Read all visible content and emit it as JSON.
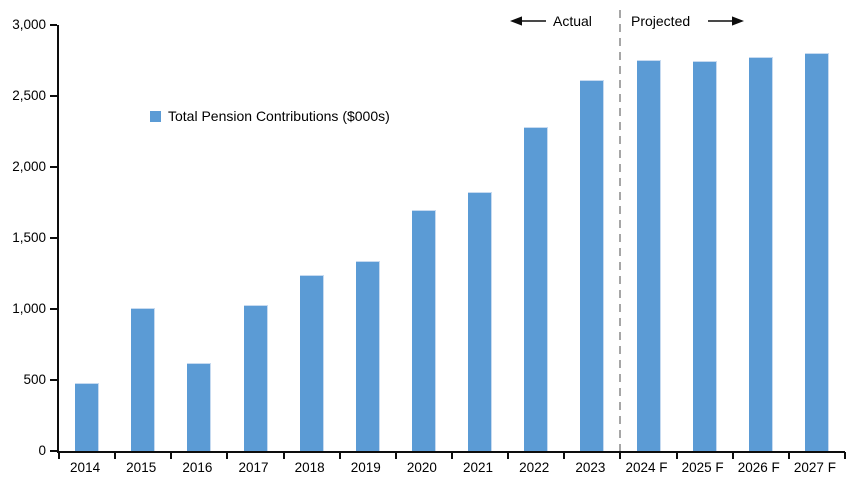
{
  "chart_data": {
    "type": "bar",
    "title": "",
    "categories": [
      "2014",
      "2015",
      "2016",
      "2017",
      "2018",
      "2019",
      "2020",
      "2021",
      "2022",
      "2023",
      "2024 F",
      "2025 F",
      "2026 F",
      "2027 F"
    ],
    "values": [
      480,
      1005,
      620,
      1030,
      1240,
      1335,
      1695,
      1825,
      2285,
      2615,
      2755,
      2750,
      2775,
      2805
    ],
    "series_name": "Total Pension Contributions ($000s)",
    "xlabel": "",
    "ylabel": "",
    "ylim": [
      0,
      3000
    ],
    "ytick_values": [
      0,
      500,
      1000,
      1500,
      2000,
      2500,
      3000
    ],
    "ytick_labels": [
      "0",
      "500",
      "1,000",
      "1,500",
      "2,000",
      "2,500",
      "3,000"
    ],
    "grid": false,
    "legend_position": "inside-upper-left",
    "actual_count": 10,
    "annotations": {
      "actual": "Actual",
      "projected": "Projected"
    },
    "colors": {
      "bar": "#5B9BD5",
      "divider": "#A6A6A6",
      "axis": "#0d0d0d",
      "text": "#000000"
    }
  }
}
